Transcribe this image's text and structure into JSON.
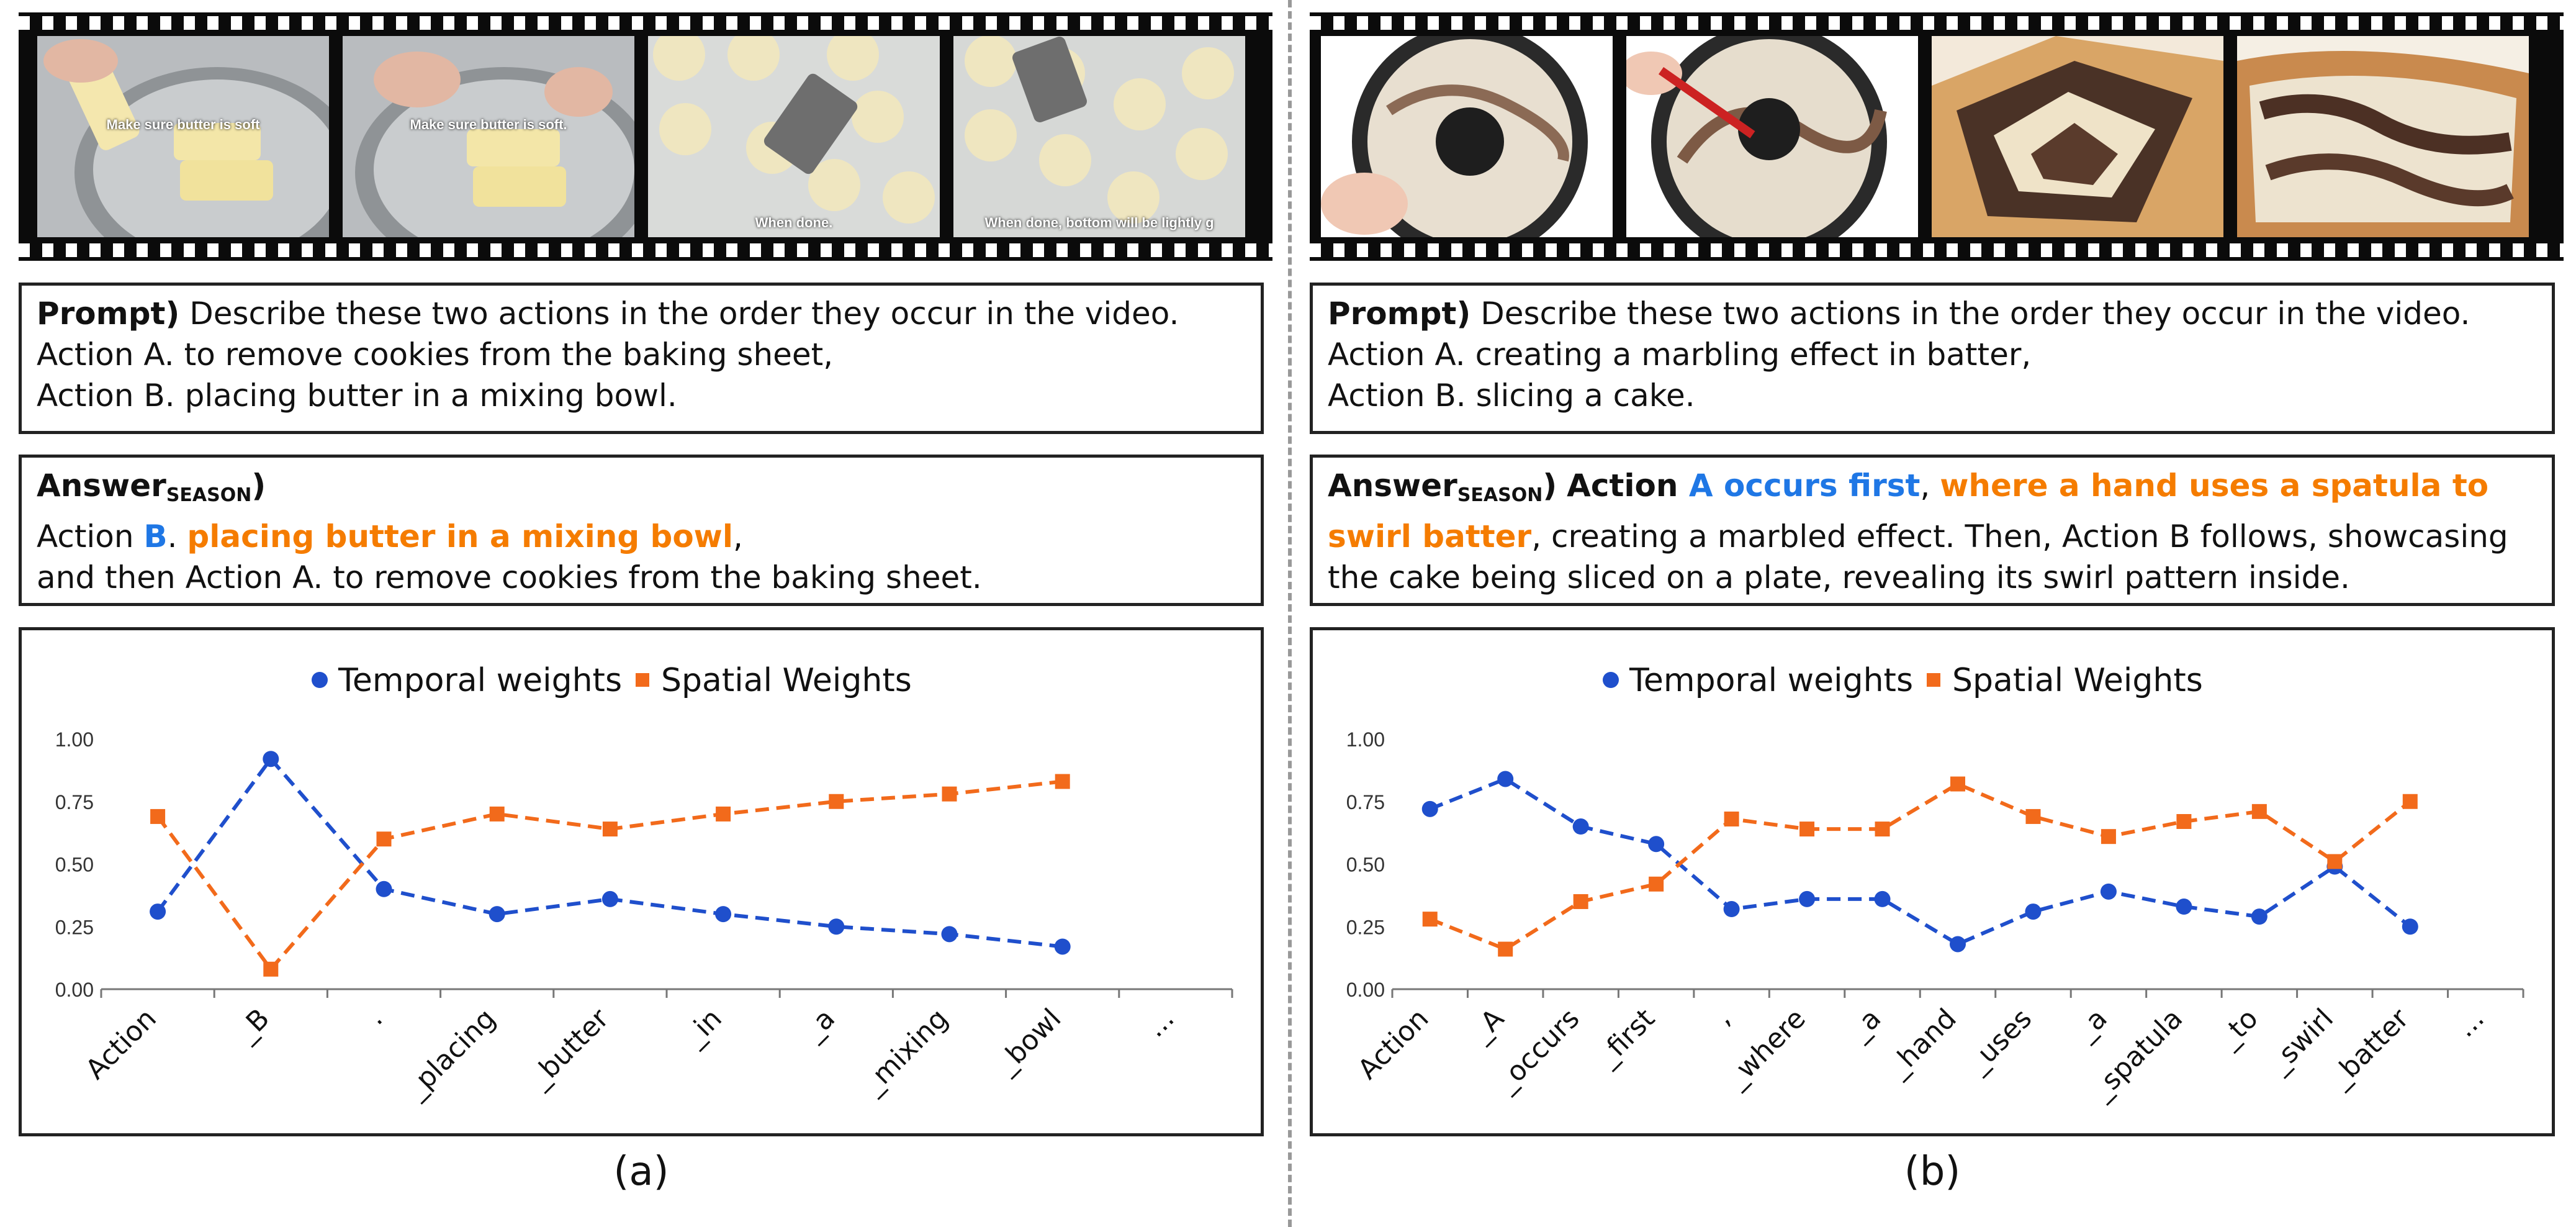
{
  "colors": {
    "temporal": "#1f4fcc",
    "spatial": "#f26a1b",
    "answer_blue": "#1f77e5",
    "answer_orange": "#f57c00"
  },
  "panels": [
    {
      "label": "(a)",
      "frames": [
        {
          "caption": "Make sure butter is soft",
          "scene": "butter-bowl"
        },
        {
          "caption": "Make sure butter is soft.",
          "scene": "butter-bowl-hands"
        },
        {
          "caption": "When done.",
          "scene": "cookies-spatula"
        },
        {
          "caption": "When done, bottom will be lightly g",
          "scene": "cookies-tray"
        }
      ],
      "prompt": {
        "head": "Prompt)",
        "question": "Describe these two actions in the order they occur in the video.",
        "action_a": "Action A. to remove cookies from the baking sheet,",
        "action_b": "Action B. placing butter in a mixing bowl."
      },
      "answer": {
        "head": "Answer",
        "sub": "SEASON",
        "close": ")",
        "l1_prefix": "Action ",
        "l1_blue": "B",
        "l1_mid": ". ",
        "l1_orange": "placing butter in a mixing bowl",
        "l1_end": ",",
        "l2": "and then Action A. to remove cookies from the baking sheet."
      }
    },
    {
      "label": "(b)",
      "frames": [
        {
          "caption": "",
          "scene": "batter-pan"
        },
        {
          "caption": "",
          "scene": "batter-swirl"
        },
        {
          "caption": "",
          "scene": "cake-slices"
        },
        {
          "caption": "",
          "scene": "cake-closeup"
        }
      ],
      "prompt": {
        "head": "Prompt)",
        "question": "Describe these two actions in the order they occur in the video.",
        "action_a": "Action A. creating a marbling effect in batter,",
        "action_b": "Action B. slicing a cake."
      },
      "answer": {
        "head": "Answer",
        "sub": "SEASON",
        "close": ")",
        "l1_prefix": "Action ",
        "l1_blue": "A occurs first",
        "l1_mid": ", ",
        "l1_orange": "where a hand uses a spatula to",
        "l2_orange": "swirl batter",
        "l2_rest": ", creating a marbled effect. Then, Action B follows, showcasing",
        "l3": "the cake being sliced on a plate, revealing its swirl pattern inside."
      }
    }
  ],
  "chart_data": [
    {
      "type": "line",
      "categories": [
        "Action",
        "_B",
        ".",
        "_placing",
        "_butter",
        "_in",
        "_a",
        "_mixing",
        "_bowl",
        "..."
      ],
      "series": [
        {
          "name": "Temporal weights",
          "marker": "circle",
          "values": [
            0.31,
            0.92,
            0.4,
            0.3,
            0.36,
            0.3,
            0.25,
            0.22,
            0.17,
            null
          ]
        },
        {
          "name": "Spatial Weights",
          "marker": "square",
          "values": [
            0.69,
            0.08,
            0.6,
            0.7,
            0.64,
            0.7,
            0.75,
            0.78,
            0.83,
            null
          ]
        }
      ],
      "yticks": [
        "0.00",
        "0.25",
        "0.50",
        "0.75",
        "1.00"
      ],
      "ylim": [
        0,
        1
      ],
      "legend": "top-center",
      "grid": false
    },
    {
      "type": "line",
      "categories": [
        "Action",
        "_A",
        "_occurs",
        "_first",
        ",",
        "_where",
        "_a",
        "_hand",
        "_uses",
        "_a",
        "_spatula",
        "_to",
        "_swirl",
        "_batter",
        "..."
      ],
      "series": [
        {
          "name": "Temporal weights",
          "marker": "circle",
          "values": [
            0.72,
            0.84,
            0.65,
            0.58,
            0.32,
            0.36,
            0.36,
            0.18,
            0.31,
            0.39,
            0.33,
            0.29,
            0.49,
            0.25,
            null
          ]
        },
        {
          "name": "Spatial Weights",
          "marker": "square",
          "values": [
            0.28,
            0.16,
            0.35,
            0.42,
            0.68,
            0.64,
            0.64,
            0.82,
            0.69,
            0.61,
            0.67,
            0.71,
            0.51,
            0.75,
            null
          ]
        }
      ],
      "yticks": [
        "0.00",
        "0.25",
        "0.50",
        "0.75",
        "1.00"
      ],
      "ylim": [
        0,
        1
      ],
      "legend": "top-center",
      "grid": false
    }
  ]
}
